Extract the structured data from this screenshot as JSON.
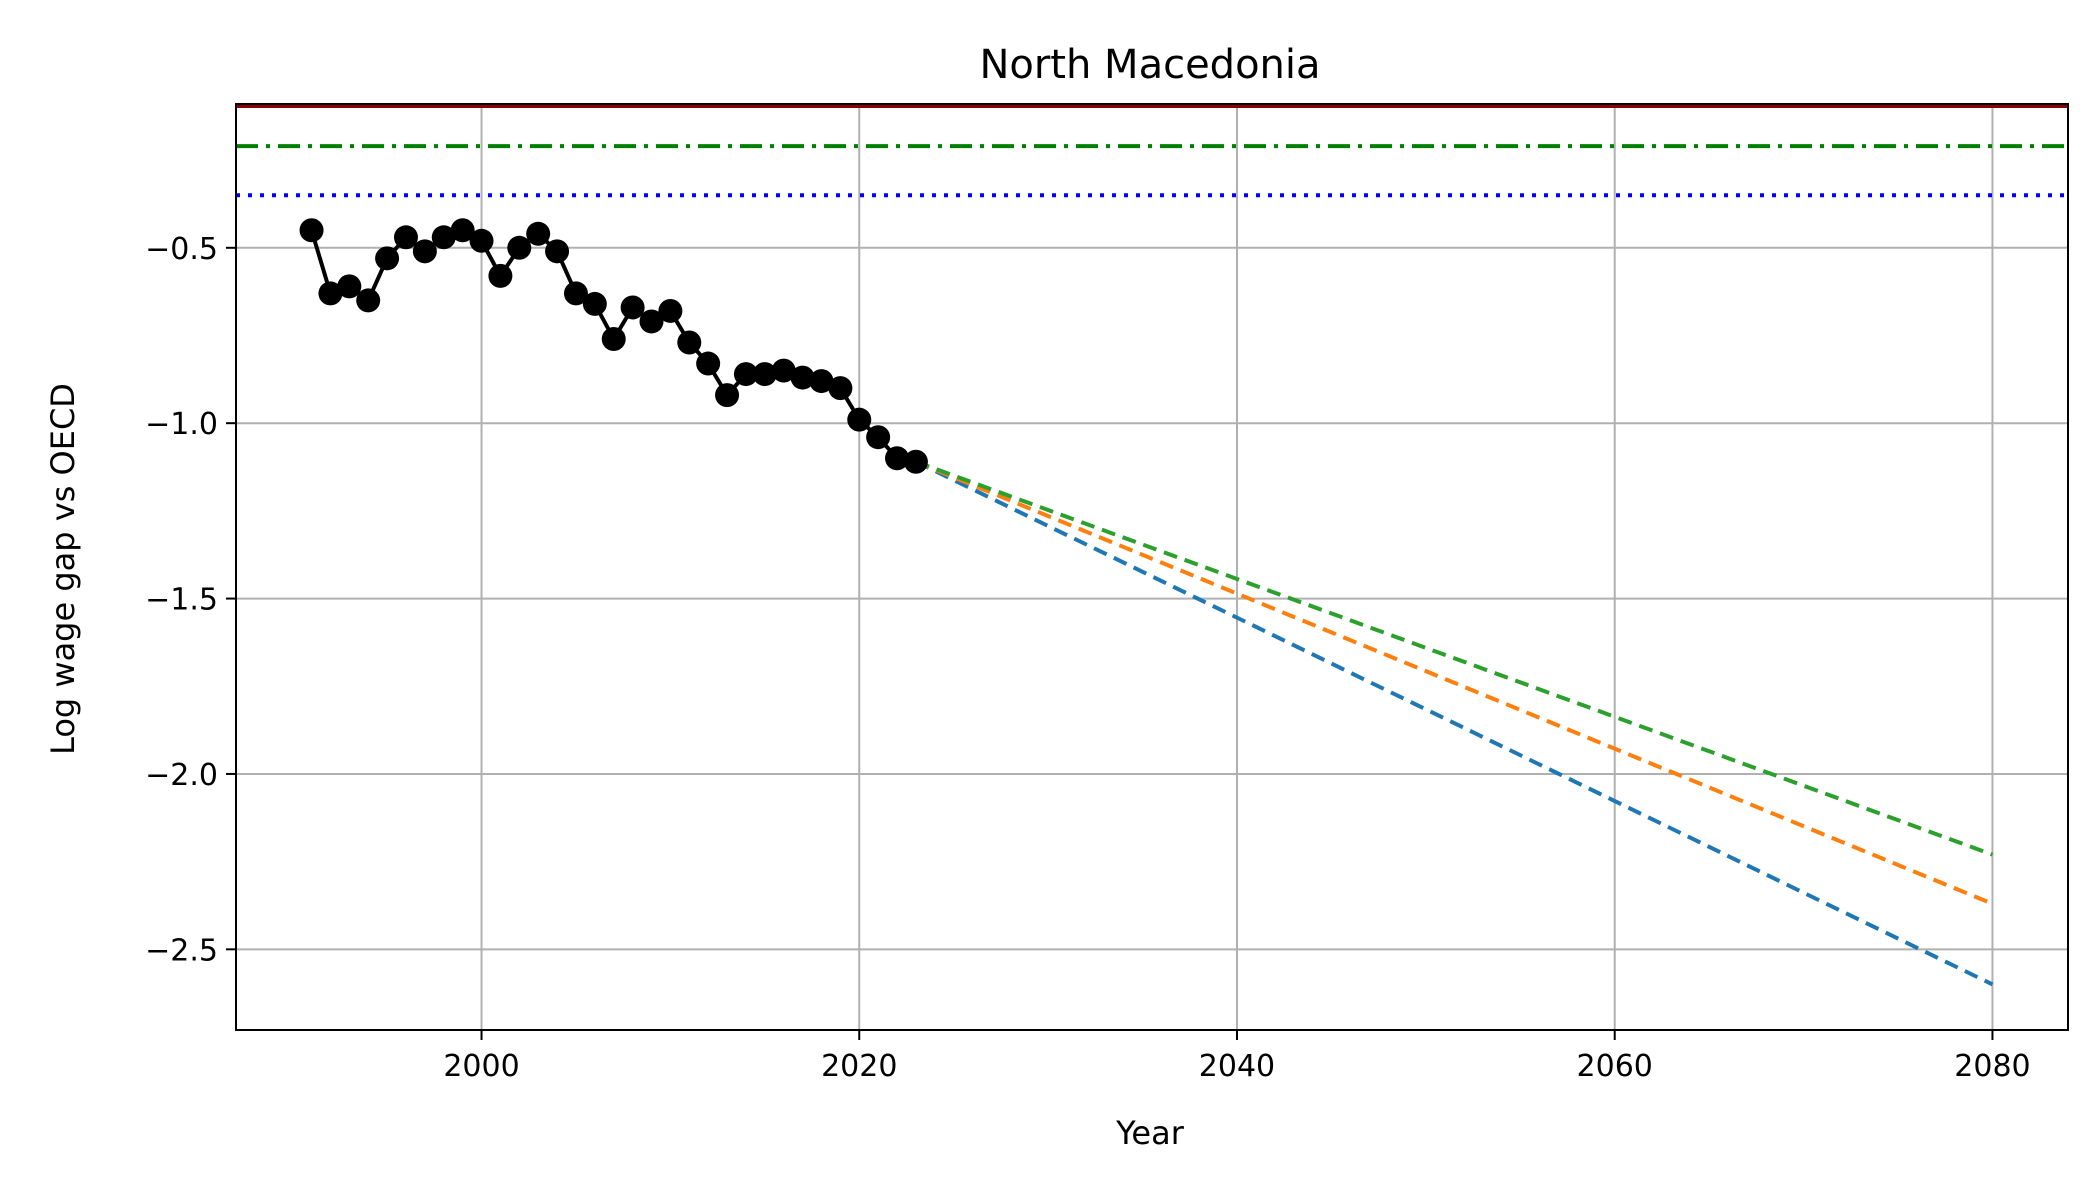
{
  "chart_data": {
    "type": "line",
    "title": "North Macedonia",
    "xlabel": "Year",
    "ylabel": "Log wage gap vs OECD",
    "xlim": [
      1987,
      2084
    ],
    "ylim": [
      -2.73,
      -0.09
    ],
    "grid": true,
    "x_ticks": [
      2000,
      2020,
      2040,
      2060,
      2080
    ],
    "x_tick_labels": [
      "2000",
      "2020",
      "2040",
      "2060",
      "2080"
    ],
    "y_ticks": [
      -0.5,
      -1.0,
      -1.5,
      -2.0,
      -2.5
    ],
    "y_tick_labels": [
      "−0.5",
      "−1.0",
      "−1.5",
      "−2.0",
      "−2.5"
    ],
    "reference_lines": [
      {
        "y": -0.09,
        "color": "#8b0000",
        "style": "solid"
      },
      {
        "y": -0.21,
        "color": "#008000",
        "style": "dashdot"
      },
      {
        "y": -0.35,
        "color": "#0000ff",
        "style": "dotted"
      }
    ],
    "historical": {
      "color": "#000000",
      "x": [
        1991,
        1992,
        1993,
        1994,
        1995,
        1996,
        1997,
        1998,
        1999,
        2000,
        2001,
        2002,
        2003,
        2004,
        2005,
        2006,
        2007,
        2008,
        2009,
        2010,
        2011,
        2012,
        2013,
        2014,
        2015,
        2016,
        2017,
        2018,
        2019,
        2020,
        2021,
        2022,
        2023
      ],
      "y": [
        -0.45,
        -0.63,
        -0.61,
        -0.65,
        -0.53,
        -0.47,
        -0.51,
        -0.47,
        -0.45,
        -0.48,
        -0.58,
        -0.5,
        -0.46,
        -0.51,
        -0.63,
        -0.66,
        -0.76,
        -0.67,
        -0.71,
        -0.68,
        -0.77,
        -0.83,
        -0.92,
        -0.86,
        -0.86,
        -0.85,
        -0.87,
        -0.88,
        -0.9,
        -0.99,
        -1.04,
        -1.1,
        -1.11
      ]
    },
    "projections": [
      {
        "color": "#1f77b4",
        "x": [
          2023,
          2080
        ],
        "y": [
          -1.11,
          -2.6
        ]
      },
      {
        "color": "#ff7f0e",
        "x": [
          2023,
          2080
        ],
        "y": [
          -1.11,
          -2.37
        ]
      },
      {
        "color": "#2ca02c",
        "x": [
          2023,
          2080
        ],
        "y": [
          -1.11,
          -2.23
        ]
      }
    ]
  }
}
